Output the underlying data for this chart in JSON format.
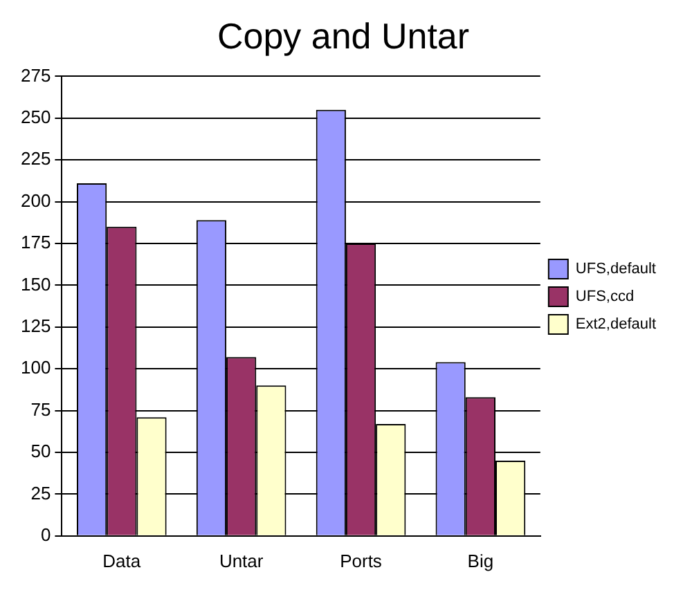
{
  "chart_data": {
    "type": "bar",
    "title": "Copy and Untar",
    "categories": [
      "Data",
      "Untar",
      "Ports",
      "Big"
    ],
    "series": [
      {
        "name": "UFS,default",
        "color": "#9999ff",
        "values": [
          211,
          189,
          255,
          104
        ]
      },
      {
        "name": "UFS,ccd",
        "color": "#993366",
        "values": [
          185,
          107,
          175,
          83
        ]
      },
      {
        "name": "Ext2,default",
        "color": "#ffffcc",
        "values": [
          71,
          90,
          67,
          45
        ]
      }
    ],
    "ylim": [
      0,
      275
    ],
    "yticks": [
      0,
      25,
      50,
      75,
      100,
      125,
      150,
      175,
      200,
      225,
      250,
      275
    ],
    "grid": "y",
    "legend": "right"
  }
}
